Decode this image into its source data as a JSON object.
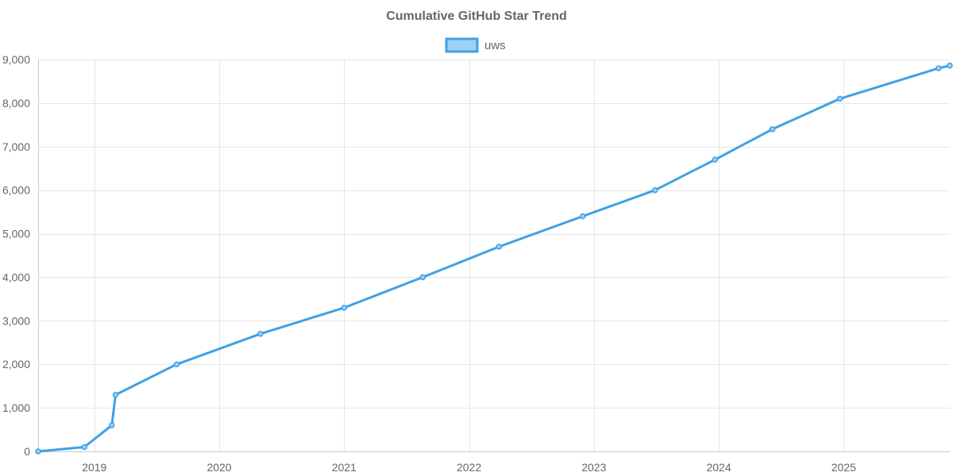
{
  "chart_data": {
    "type": "line",
    "title": "Cumulative GitHub Star Trend",
    "xlabel": "",
    "ylabel": "",
    "x_unit": "year",
    "xlim": [
      2018.55,
      2025.85
    ],
    "ylim": [
      0,
      9000
    ],
    "x_ticks": [
      2019,
      2020,
      2021,
      2022,
      2023,
      2024,
      2025
    ],
    "x_tick_labels": [
      "2019",
      "2020",
      "2021",
      "2022",
      "2023",
      "2024",
      "2025"
    ],
    "y_ticks": [
      0,
      1000,
      2000,
      3000,
      4000,
      5000,
      6000,
      7000,
      8000,
      9000
    ],
    "y_tick_labels": [
      "0",
      "1,000",
      "2,000",
      "3,000",
      "4,000",
      "5,000",
      "6,000",
      "7,000",
      "8,000",
      "9,000"
    ],
    "grid": true,
    "legend_position": "top-center",
    "series": [
      {
        "name": "uws",
        "color": "#3fa1e4",
        "fill_color": "#9dd0f3",
        "x": [
          2018.55,
          2018.92,
          2019.14,
          2019.17,
          2019.66,
          2020.33,
          2021.0,
          2021.63,
          2022.24,
          2022.91,
          2023.49,
          2023.97,
          2024.43,
          2024.97,
          2025.76,
          2025.85
        ],
        "values": [
          0,
          100,
          600,
          1300,
          2000,
          2700,
          3300,
          4000,
          4700,
          5400,
          6000,
          6700,
          7400,
          8100,
          8800,
          8860
        ]
      }
    ]
  }
}
